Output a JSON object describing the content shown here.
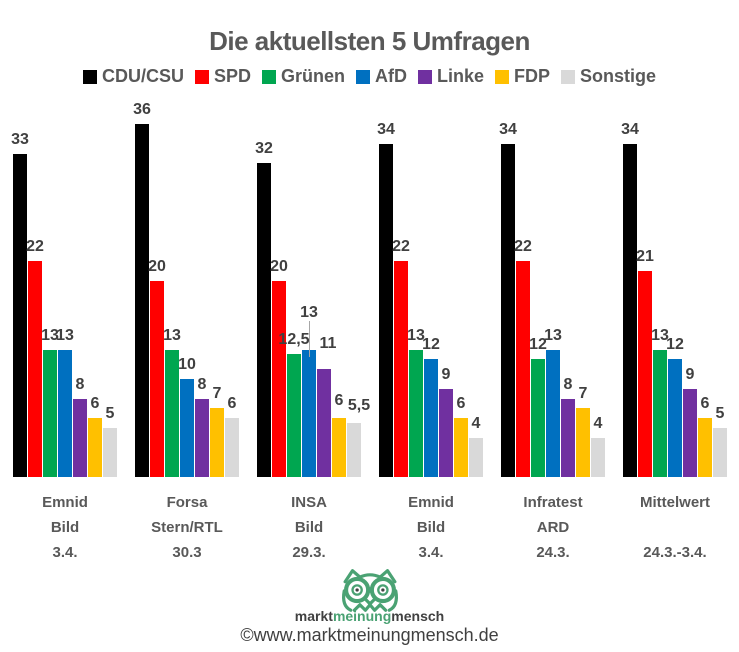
{
  "title": "Die aktuellsten 5 Umfragen",
  "colors": {
    "title_text": "#595959",
    "value_label_text": "#404040",
    "axis_label_text": "#595959",
    "leader_line": "#a6a6a6",
    "background": "#ffffff",
    "brand_green": "#4aa273",
    "brand_dark": "#404040"
  },
  "chart_data": {
    "type": "bar",
    "title": "Die aktuellsten 5 Umfragen",
    "xlabel": "",
    "ylabel": "",
    "ylim": [
      0,
      38
    ],
    "grid": false,
    "legend_position": "top",
    "value_labels": true,
    "categories": [
      [
        "Emnid",
        "Bild",
        "3.4."
      ],
      [
        "Forsa",
        "Stern/RTL",
        "30.3"
      ],
      [
        "INSA",
        "Bild",
        "29.3."
      ],
      [
        "Emnid",
        "Bild",
        "3.4."
      ],
      [
        "Infratest",
        "ARD",
        "24.3."
      ],
      [
        "Mittelwert",
        "",
        "24.3.-3.4."
      ]
    ],
    "series": [
      {
        "name": "CDU/CSU",
        "color": "#000000",
        "values": [
          33,
          36,
          32,
          34,
          34,
          34
        ],
        "labels": [
          "33",
          "36",
          "32",
          "34",
          "34",
          "34"
        ]
      },
      {
        "name": "SPD",
        "color": "#ff0000",
        "values": [
          22,
          20,
          20,
          22,
          22,
          21
        ],
        "labels": [
          "22",
          "20",
          "20",
          "22",
          "22",
          "21"
        ]
      },
      {
        "name": "Grünen",
        "color": "#00a650",
        "values": [
          13,
          13,
          12.5,
          13,
          12,
          13
        ],
        "labels": [
          "13",
          "13",
          "12,5",
          "13",
          "12",
          "13"
        ]
      },
      {
        "name": "AfD",
        "color": "#0070c0",
        "values": [
          13,
          10,
          13,
          12,
          13,
          12
        ],
        "labels": [
          "13",
          "10",
          "13",
          "12",
          "13",
          "12"
        ]
      },
      {
        "name": "Linke",
        "color": "#7030a0",
        "values": [
          8,
          8,
          11,
          9,
          8,
          9
        ],
        "labels": [
          "8",
          "8",
          "11",
          "9",
          "8",
          "9"
        ]
      },
      {
        "name": "FDP",
        "color": "#ffc000",
        "values": [
          6,
          7,
          6,
          6,
          7,
          6
        ],
        "labels": [
          "6",
          "7",
          "6",
          "6",
          "7",
          "6"
        ]
      },
      {
        "name": "Sonstige",
        "color": "#d9d9d9",
        "values": [
          5,
          6,
          5.5,
          4,
          4,
          5
        ],
        "labels": [
          "5",
          "6",
          "5,5",
          "4",
          "4",
          "5"
        ]
      }
    ],
    "label_adjustments": [
      {
        "series_index": 3,
        "group_index": 2,
        "raise": 23,
        "leader": true
      },
      {
        "series_index": 4,
        "group_index": 2,
        "raise": 11,
        "dx": 4
      },
      {
        "series_index": 5,
        "group_index": 2,
        "raise": 3
      },
      {
        "series_index": 6,
        "group_index": 2,
        "raise": 3,
        "dx": 5
      }
    ]
  },
  "footer": {
    "logo_icon": "owl-logo",
    "brand": {
      "part1": "markt",
      "part2": "meinung",
      "part3": "mensch"
    },
    "copyright": "©www.marktmeinungmensch.de"
  }
}
